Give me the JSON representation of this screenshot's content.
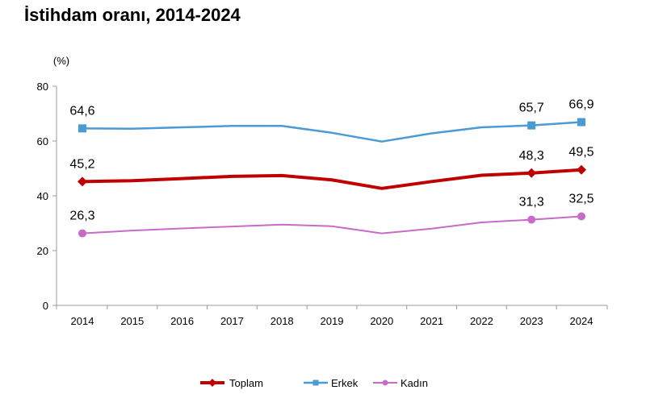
{
  "title": "İstihdam oranı, 2014-2024",
  "chart_data": {
    "type": "line",
    "title": "İstihdam oranı, 2014-2024",
    "ylabel": "(%)",
    "xlabel": "",
    "ylim": [
      0,
      80
    ],
    "yticks": [
      0,
      20,
      40,
      60,
      80
    ],
    "categories": [
      "2014",
      "2015",
      "2016",
      "2017",
      "2018",
      "2019",
      "2020",
      "2021",
      "2022",
      "2023",
      "2024"
    ],
    "series": [
      {
        "name": "Toplam",
        "color": "#c00000",
        "marker": "diamond",
        "values": [
          45.2,
          45.5,
          46.3,
          47.1,
          47.4,
          45.8,
          42.7,
          45.2,
          47.5,
          48.3,
          49.5
        ],
        "labels": {
          "0": "45,2",
          "9": "48,3",
          "10": "49,5"
        }
      },
      {
        "name": "Erkek",
        "color": "#4a9ad6",
        "marker": "square",
        "values": [
          64.6,
          64.5,
          65.0,
          65.5,
          65.5,
          63.0,
          59.8,
          62.8,
          65.0,
          65.7,
          66.9
        ],
        "labels": {
          "0": "64,6",
          "9": "65,7",
          "10": "66,9"
        }
      },
      {
        "name": "Kadın",
        "color": "#c86ac8",
        "marker": "circle",
        "values": [
          26.3,
          27.3,
          28.1,
          28.8,
          29.5,
          28.9,
          26.3,
          28.0,
          30.3,
          31.3,
          32.5
        ],
        "labels": {
          "0": "26,3",
          "9": "31,3",
          "10": "32,5"
        }
      }
    ],
    "legend_position": "bottom"
  }
}
